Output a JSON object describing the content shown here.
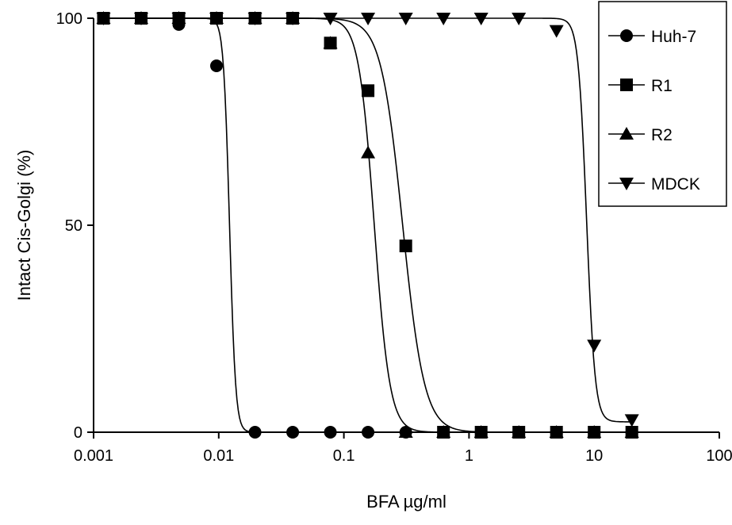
{
  "chart_data": {
    "type": "line",
    "title": "",
    "xlabel": "BFA µg/ml",
    "ylabel": "Intact Cis-Golgi (%)",
    "x_scale": "log",
    "xlim": [
      0.001,
      100
    ],
    "ylim": [
      0,
      100
    ],
    "x_ticks": [
      0.001,
      0.01,
      0.1,
      1,
      10,
      100
    ],
    "x_tick_labels": [
      "0.001",
      "0.01",
      "0.1",
      "1",
      "10",
      "100"
    ],
    "y_ticks": [
      0,
      50,
      100
    ],
    "y_tick_labels": [
      "0",
      "50",
      "100"
    ],
    "grid": false,
    "legend_position": "top-right",
    "series": [
      {
        "name": "Huh-7",
        "marker": "circle",
        "x": [
          0.0012,
          0.0024,
          0.0048,
          0.0096,
          0.0195,
          0.039,
          0.078,
          0.156,
          0.3125,
          0.625,
          1.25,
          2.5,
          5,
          10,
          20
        ],
        "y": [
          100,
          100,
          98.5,
          88.5,
          0,
          0,
          0,
          0,
          0,
          0,
          0,
          0,
          0,
          0,
          0
        ],
        "curve": {
          "top": 100,
          "bottom": 0,
          "ec50": 0.0122,
          "hill": 18
        }
      },
      {
        "name": "R1",
        "marker": "square",
        "x": [
          0.0012,
          0.0024,
          0.0048,
          0.0096,
          0.0195,
          0.039,
          0.078,
          0.156,
          0.3125,
          0.625,
          1.25,
          2.5,
          5,
          10,
          20
        ],
        "y": [
          100,
          100,
          100,
          100,
          100,
          100,
          94,
          82.5,
          45,
          0,
          0,
          0,
          0,
          0,
          0
        ],
        "curve": {
          "top": 100,
          "bottom": 0,
          "ec50": 0.295,
          "hill": 5
        }
      },
      {
        "name": "R2",
        "marker": "triangle-up",
        "x": [
          0.0012,
          0.0024,
          0.0048,
          0.0096,
          0.0195,
          0.039,
          0.078,
          0.156,
          0.3125,
          0.625,
          1.25,
          2.5,
          5,
          10,
          20
        ],
        "y": [
          100,
          100,
          100,
          100,
          100,
          100,
          94,
          67.5,
          0,
          0,
          0,
          0,
          0,
          0,
          0
        ],
        "curve": {
          "top": 100,
          "bottom": 0,
          "ec50": 0.175,
          "hill": 7
        }
      },
      {
        "name": "MDCK",
        "marker": "triangle-down",
        "x": [
          0.0012,
          0.0024,
          0.0048,
          0.0096,
          0.0195,
          0.039,
          0.078,
          0.156,
          0.3125,
          0.625,
          1.25,
          2.5,
          5,
          10,
          20
        ],
        "y": [
          100,
          100,
          100,
          100,
          100,
          100,
          100,
          100,
          100,
          100,
          100,
          100,
          97,
          21,
          3
        ],
        "curve": {
          "top": 100,
          "bottom": 2.5,
          "ec50": 8.7,
          "hill": 13
        }
      }
    ]
  }
}
